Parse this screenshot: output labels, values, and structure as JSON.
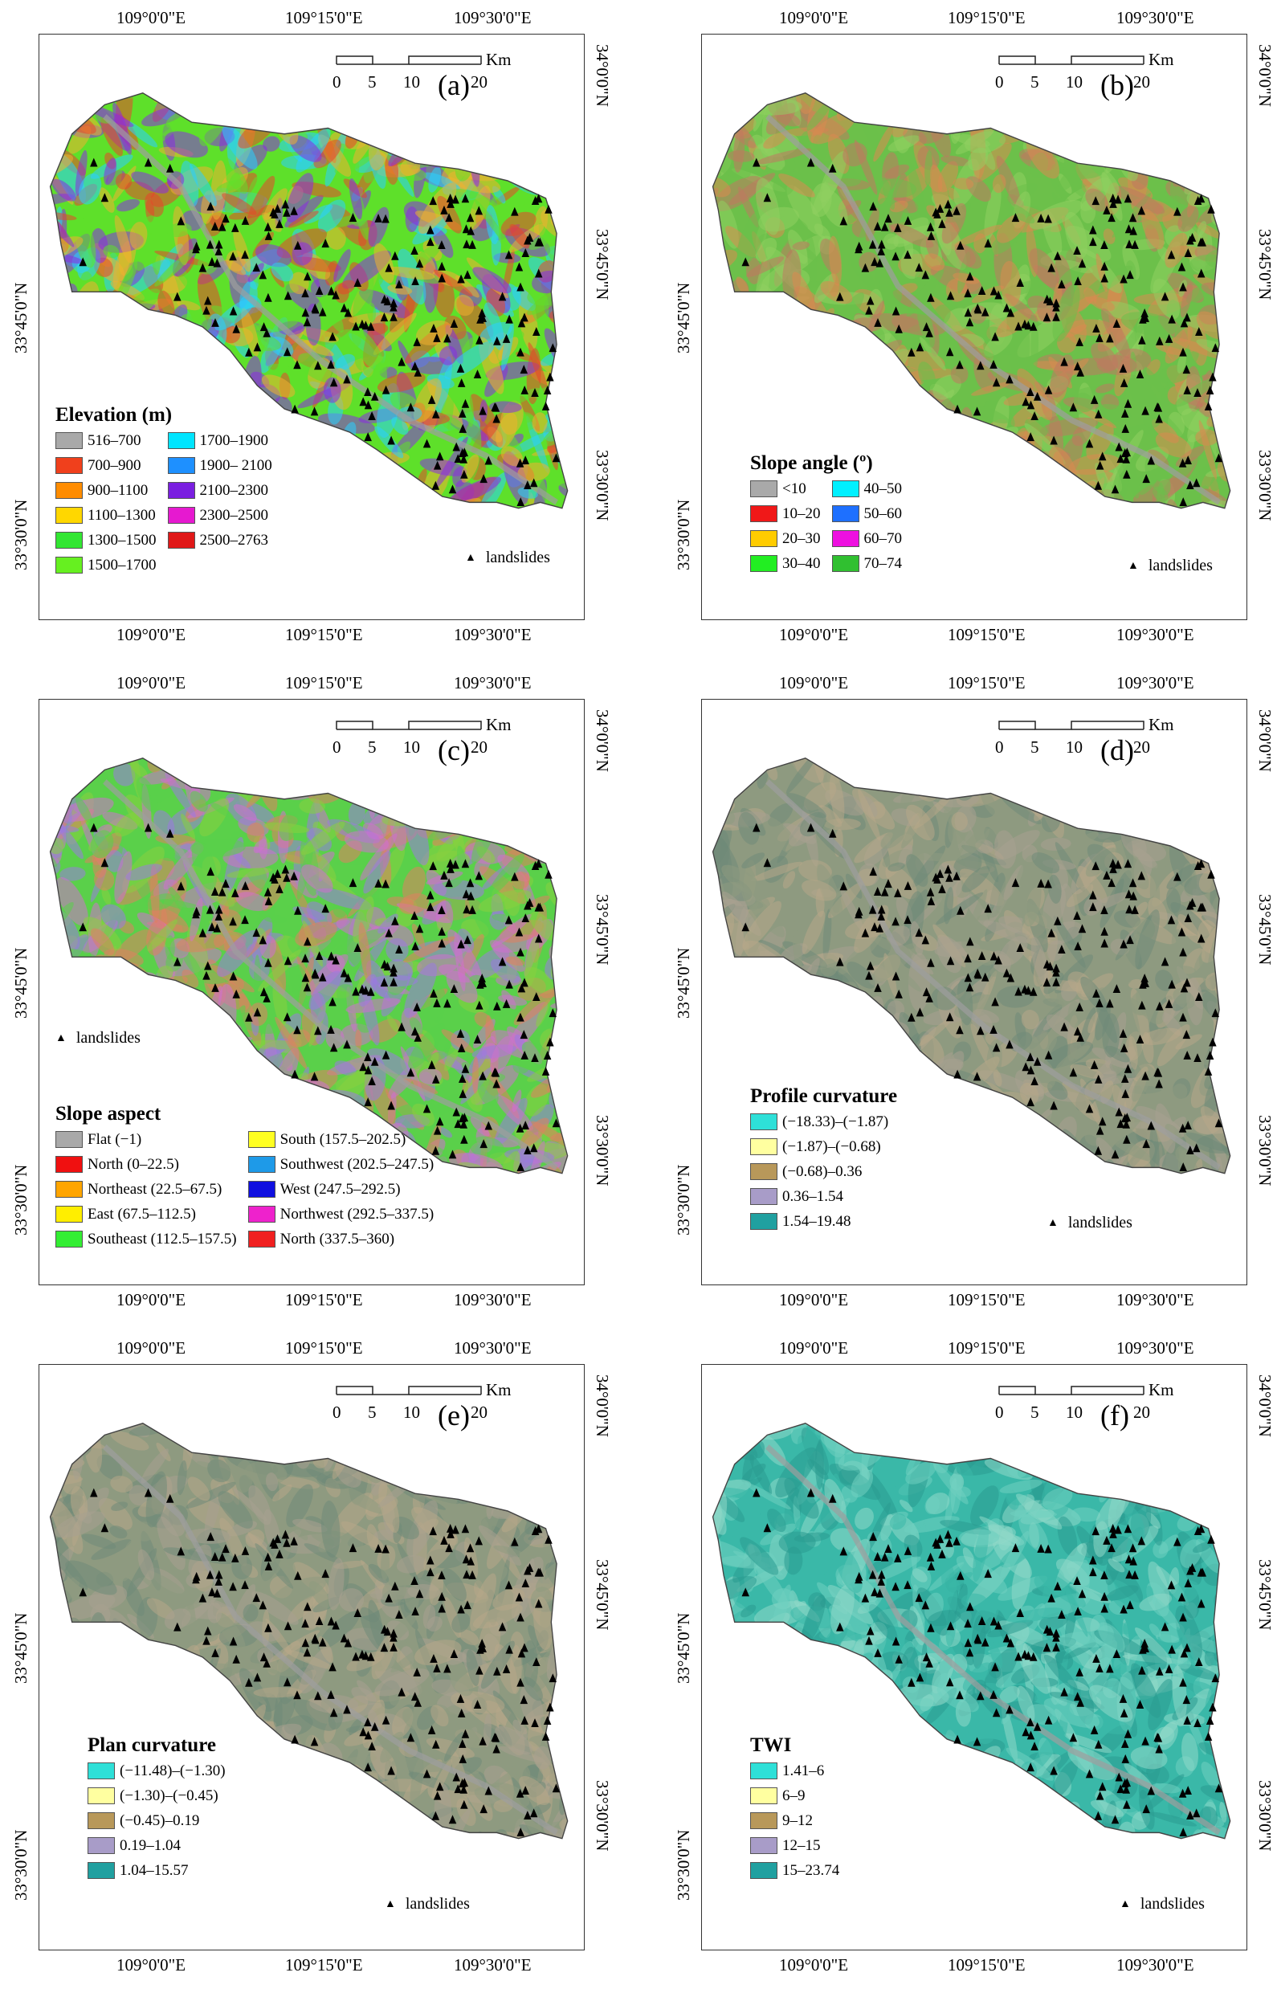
{
  "coordinates": {
    "lon_labels": [
      "109°0'0\"E",
      "109°15'0\"E",
      "109°30'0\"E"
    ],
    "lat_labels": [
      "34°0'0\"N",
      "33°45'0\"N",
      "33°30'0\"N"
    ]
  },
  "scale_bar": {
    "ticks": [
      "0",
      "5",
      "10",
      "20"
    ],
    "unit": "Km"
  },
  "landslides_label": "landslides",
  "panels": [
    {
      "id": "a",
      "letter": "(a)",
      "legend_title": "Elevation (m)",
      "legend_columns": 2,
      "legend": [
        {
          "label": "516–700",
          "color": "#a9a9a9"
        },
        {
          "label": "700–900",
          "color": "#f0401c"
        },
        {
          "label": "900–1100",
          "color": "#ff8c00"
        },
        {
          "label": "1100–1300",
          "color": "#ffd700"
        },
        {
          "label": "1300–1500",
          "color": "#32e632"
        },
        {
          "label": "1500–1700",
          "color": "#66f020"
        },
        {
          "label": "1700–1900",
          "color": "#00e5ff"
        },
        {
          "label": "1900– 2100",
          "color": "#1e90ff"
        },
        {
          "label": "2100–2300",
          "color": "#7a1fe0"
        },
        {
          "label": "2300–2500",
          "color": "#e619d0"
        },
        {
          "label": "2500–2763",
          "color": "#e01818"
        }
      ],
      "terrain_colors": [
        "#5ee02a",
        "#f0b030",
        "#e8462a",
        "#2ad0ff",
        "#8a2be2"
      ]
    },
    {
      "id": "b",
      "letter": "(b)",
      "legend_title": "Slope angle (º)",
      "legend_columns": 2,
      "legend": [
        {
          "label": "<10",
          "color": "#a9a9a9"
        },
        {
          "label": "10–20",
          "color": "#f01818"
        },
        {
          "label": "20–30",
          "color": "#ffcc00"
        },
        {
          "label": "30–40",
          "color": "#22ee22"
        },
        {
          "label": "40–50",
          "color": "#00f0ff"
        },
        {
          "label": "50–60",
          "color": "#1e70ff"
        },
        {
          "label": "60–70",
          "color": "#ee10e0"
        },
        {
          "label": "70–74",
          "color": "#30c030"
        }
      ],
      "terrain_colors": [
        "#6cc04a",
        "#d88a50",
        "#8fd060",
        "#c07860"
      ]
    },
    {
      "id": "c",
      "letter": "(c)",
      "legend_title": "Slope aspect",
      "legend_columns": 2,
      "legend": [
        {
          "label": "Flat (−1)",
          "color": "#a9a9a9"
        },
        {
          "label": "North (0–22.5)",
          "color": "#f01010"
        },
        {
          "label": "Northeast (22.5–67.5)",
          "color": "#ffa500"
        },
        {
          "label": "East (67.5–112.5)",
          "color": "#ffee00"
        },
        {
          "label": "Southeast (112.5–157.5)",
          "color": "#33ee33"
        },
        {
          "label": "South (157.5–202.5)",
          "color": "#ffff22"
        },
        {
          "label": "Southwest (202.5–247.5)",
          "color": "#1e9ae8"
        },
        {
          "label": "West (247.5–292.5)",
          "color": "#1010e0"
        },
        {
          "label": "Northwest (292.5–337.5)",
          "color": "#ee22cc"
        },
        {
          "label": "North (337.5–360)",
          "color": "#f02020"
        }
      ],
      "terrain_colors": [
        "#5ad04a",
        "#d070d0",
        "#e08060",
        "#9a7ae0",
        "#88d040"
      ]
    },
    {
      "id": "d",
      "letter": "(d)",
      "legend_title": "Profile curvature",
      "legend_columns": 1,
      "legend": [
        {
          "label": "(−18.33)–(−1.87)",
          "color": "#2ee0d8"
        },
        {
          "label": "(−1.87)–(−0.68)",
          "color": "#ffffa0"
        },
        {
          "label": "(−0.68)–0.36",
          "color": "#b8985a"
        },
        {
          "label": "0.36–1.54",
          "color": "#a89cc8"
        },
        {
          "label": "1.54–19.48",
          "color": "#20a0a0"
        }
      ],
      "terrain_colors": [
        "#8e9a80",
        "#b7a888",
        "#6f8a78",
        "#a8a090"
      ]
    },
    {
      "id": "e",
      "letter": "(e)",
      "legend_title": "Plan curvature",
      "legend_columns": 1,
      "legend": [
        {
          "label": "(−11.48)–(−1.30)",
          "color": "#2ee0d8"
        },
        {
          "label": "(−1.30)–(−0.45)",
          "color": "#ffffa0"
        },
        {
          "label": "(−0.45)–0.19",
          "color": "#b8985a"
        },
        {
          "label": "0.19–1.04",
          "color": "#a89cc8"
        },
        {
          "label": "1.04–15.57",
          "color": "#20a0a0"
        }
      ],
      "terrain_colors": [
        "#8e9a80",
        "#b7a888",
        "#6f8a78",
        "#a8a090"
      ]
    },
    {
      "id": "f",
      "letter": "(f)",
      "legend_title": "TWI",
      "legend_columns": 1,
      "legend": [
        {
          "label": "1.41–6",
          "color": "#2ee0d8"
        },
        {
          "label": "6–9",
          "color": "#ffffa0"
        },
        {
          "label": "9–12",
          "color": "#b8985a"
        },
        {
          "label": "12–15",
          "color": "#a89cc8"
        },
        {
          "label": "15–23.74",
          "color": "#20a0a0"
        }
      ],
      "terrain_colors": [
        "#3ab8a8",
        "#6fd0c0",
        "#2a9a90",
        "#8fd8c8"
      ]
    }
  ]
}
